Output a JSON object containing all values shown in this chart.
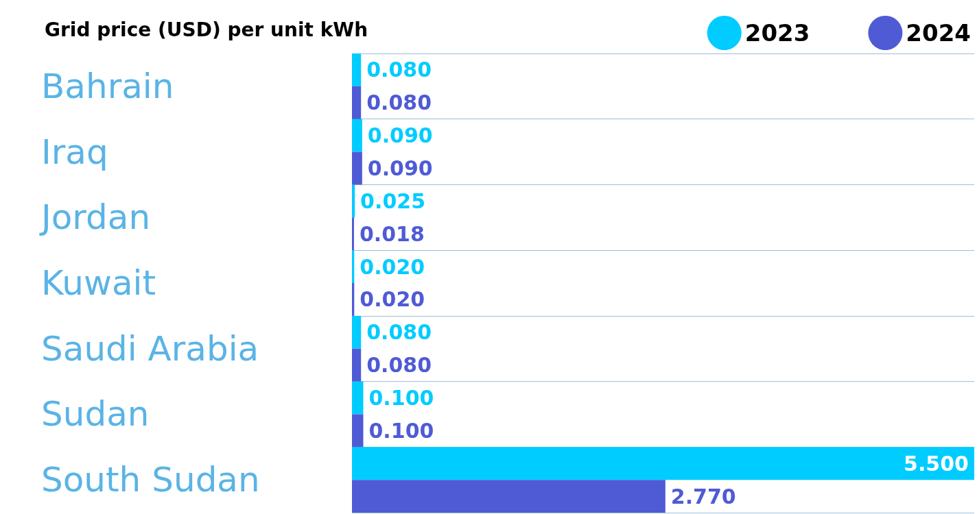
{
  "chart_data": {
    "type": "bar",
    "orientation": "horizontal",
    "title": "Grid price (USD) per unit kWh",
    "categories": [
      "Bahrain",
      "Iraq",
      "Jordan",
      "Kuwait",
      "Saudi Arabia",
      "Sudan",
      "South Sudan"
    ],
    "series": [
      {
        "name": "2023",
        "color": "#00ccff",
        "values": [
          0.08,
          0.09,
          0.025,
          0.02,
          0.08,
          0.1,
          5.5
        ],
        "value_labels": [
          "0.080",
          "0.090",
          "0.025",
          "0.020",
          "0.080",
          "0.100",
          "5.500"
        ]
      },
      {
        "name": "2024",
        "color": "#4f5bd5",
        "values": [
          0.08,
          0.09,
          0.018,
          0.02,
          0.08,
          0.1,
          2.77
        ],
        "value_labels": [
          "0.080",
          "0.090",
          "0.018",
          "0.020",
          "0.080",
          "0.100",
          "2.770"
        ]
      }
    ],
    "legend": "top right",
    "grid": "y"
  }
}
